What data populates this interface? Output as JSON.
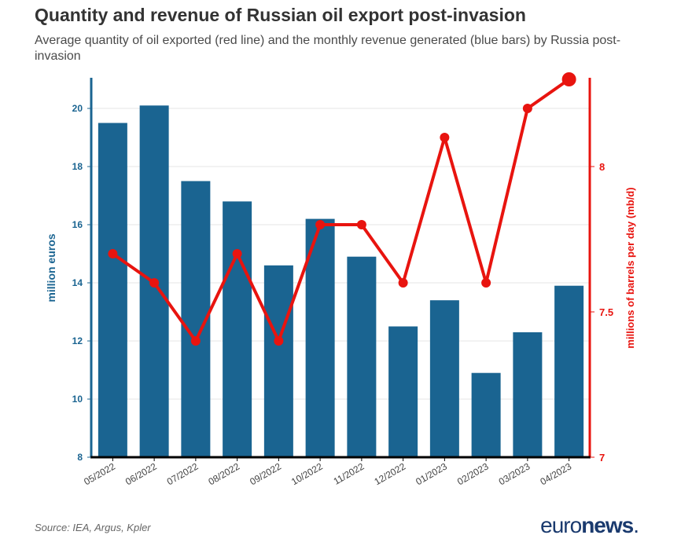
{
  "header": {
    "title": "Quantity and revenue of Russian oil export post-invasion",
    "subtitle": "Average quantity of oil exported (red line) and the monthly revenue generated (blue bars) by Russia post-invasion"
  },
  "footer": {
    "source": "Source: IEA, Argus, Kpler",
    "logo_light": "euro",
    "logo_bold": "news",
    "logo_dot": "."
  },
  "colors": {
    "bar": "#1a6491",
    "line": "#e8140f",
    "left_axis": "#1a6491",
    "right_axis": "#e8140f",
    "grid": "#e6e6e6"
  },
  "chart_data": {
    "type": "bar",
    "categories": [
      "05/2022",
      "06/2022",
      "07/2022",
      "08/2022",
      "09/2022",
      "10/2022",
      "11/2022",
      "12/2022",
      "01/2023",
      "02/2023",
      "03/2023",
      "04/2023"
    ],
    "series": [
      {
        "type": "bar",
        "axis": "left",
        "values": [
          19.5,
          20.1,
          17.5,
          16.8,
          14.6,
          16.2,
          14.9,
          12.5,
          13.4,
          10.9,
          12.3,
          13.9
        ]
      },
      {
        "type": "line",
        "axis": "right",
        "values": [
          7.7,
          7.6,
          7.4,
          7.7,
          7.4,
          7.8,
          7.8,
          7.6,
          8.1,
          7.6,
          8.2,
          8.3
        ]
      }
    ],
    "ylabel": "million euros",
    "y2label": "millions of barrels per day (mb/d)",
    "ylim": [
      8,
      21
    ],
    "yticks": [
      8,
      10,
      12,
      14,
      16,
      18,
      20
    ],
    "y2lim": [
      7,
      8.3
    ],
    "y2ticks": [
      7,
      7.5,
      8
    ],
    "y2ticklabels": [
      "7",
      "7.5",
      "8"
    ],
    "grid": true
  }
}
